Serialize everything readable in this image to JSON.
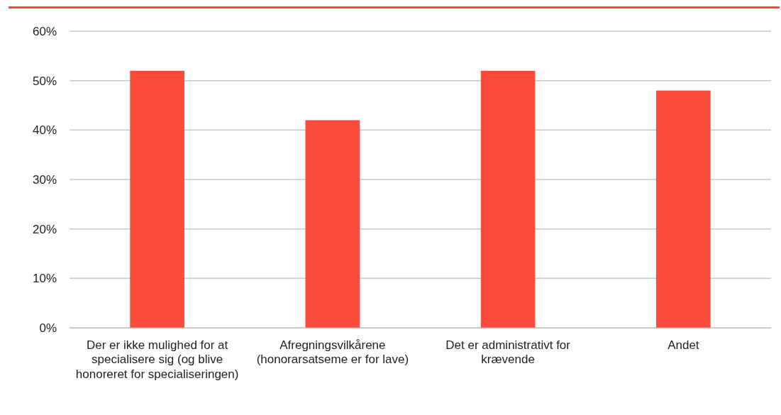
{
  "chart_data": {
    "type": "bar",
    "categories": [
      "Der er ikke mulighed for at specialisere sig (og blive honoreret for specialiseringen)",
      "Afregningsvilkårene (honorarsatseme er for lave)",
      "Det er administrativt for krævende",
      "Andet"
    ],
    "values": [
      52,
      42,
      52,
      48
    ],
    "color": "#fa4b3c",
    "ylim": [
      0,
      60
    ],
    "yticks": [
      {
        "value": 0,
        "label": "0%"
      },
      {
        "value": 10,
        "label": "10%"
      },
      {
        "value": 20,
        "label": "20%"
      },
      {
        "value": 30,
        "label": "30%"
      },
      {
        "value": 40,
        "label": "40%"
      },
      {
        "value": 50,
        "label": "50%"
      },
      {
        "value": 60,
        "label": "60%"
      }
    ],
    "grid": "y"
  }
}
